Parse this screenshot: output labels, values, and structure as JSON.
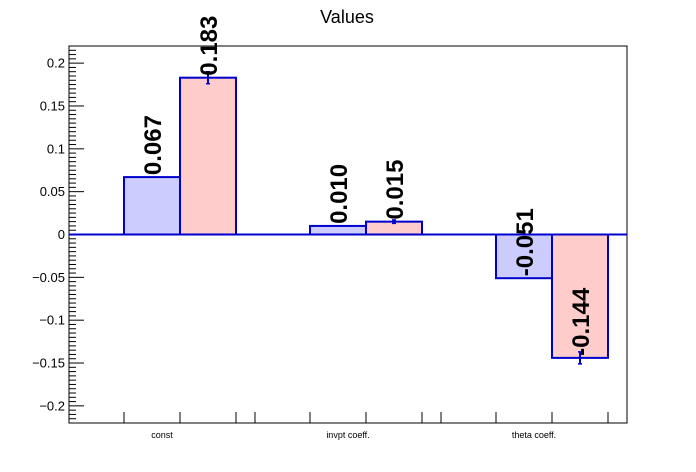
{
  "chart_data": {
    "type": "bar",
    "title": "Values",
    "xlabel": "",
    "ylabel": "",
    "categories": [
      "const",
      "invpt coeff.",
      "theta coeff."
    ],
    "ylim": [
      -0.22,
      0.22
    ],
    "yticks": [
      -0.2,
      -0.15,
      -0.1,
      -0.05,
      0,
      0.05,
      0.1,
      0.15,
      0.2
    ],
    "ytick_labels": [
      "−0.2",
      "−0.15",
      "−0.1",
      "−0.05",
      "0",
      "0.05",
      "0.1",
      "0.15",
      "0.2"
    ],
    "grid": false,
    "series": [
      {
        "color": "#ccccff",
        "edge_color": "#0000cc",
        "values": [
          0.067,
          0.01,
          -0.051
        ],
        "labels": [
          "0.067",
          "0.010",
          "-0.051"
        ],
        "errors": [
          0,
          0,
          0
        ]
      },
      {
        "color": "#ffcccc",
        "edge_color": "#0000cc",
        "values": [
          0.183,
          0.015,
          -0.144
        ],
        "labels": [
          "0.183",
          "0.015",
          "-0.144"
        ],
        "errors": [
          0.007,
          0.002,
          0.007
        ]
      }
    ]
  }
}
